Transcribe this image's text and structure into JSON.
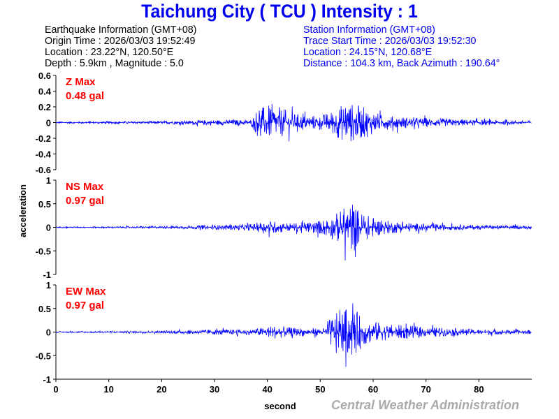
{
  "header": {
    "title": "Taichung City  ( TCU )  Intensity : 1"
  },
  "earthquake": {
    "heading": "Earthquake Information  (GMT+08)",
    "origin_time": "Origin Time : 2026/03/03 19:52:49",
    "location": "Location : 23.22°N, 120.50°E",
    "depth_magnitude": "Depth : 5.9km , Magnitude : 5.0"
  },
  "station": {
    "heading": "Station Information  (GMT+08)",
    "trace_start": "Trace Start Time : 2026/03/03 19:52:30",
    "location": "Location : 24.15°N, 120.68°E",
    "distance": "Distance : 104.3 km, Back Azimuth : 190.64°"
  },
  "footer": {
    "credit": "Central Weather Administration"
  },
  "chart_data": {
    "type": "line",
    "xlabel": "second",
    "ylabel": "acceleration",
    "xlim": [
      0,
      90
    ],
    "xticks": [
      "0",
      "10",
      "20",
      "30",
      "40",
      "50",
      "60",
      "70",
      "80"
    ],
    "line_color": "#0000ff",
    "panels": [
      {
        "name": "Z",
        "max_label": "Z Max",
        "max_value": "0.48 gal",
        "ylim": [
          -0.6,
          0.6
        ],
        "yticks": [
          "0.6",
          "0.4",
          "0.2",
          "0",
          "-0.2",
          "-0.4",
          "-0.6"
        ],
        "envelope": [
          [
            0,
            0.02
          ],
          [
            20,
            0.03
          ],
          [
            30,
            0.06
          ],
          [
            37,
            0.06
          ],
          [
            38,
            0.3
          ],
          [
            41,
            0.4
          ],
          [
            45,
            0.2
          ],
          [
            50,
            0.15
          ],
          [
            52,
            0.25
          ],
          [
            55,
            0.45
          ],
          [
            58,
            0.35
          ],
          [
            62,
            0.15
          ],
          [
            70,
            0.1
          ],
          [
            80,
            0.06
          ],
          [
            90,
            0.04
          ]
        ]
      },
      {
        "name": "NS",
        "max_label": "NS Max",
        "max_value": "0.97 gal",
        "ylim": [
          -1,
          1
        ],
        "yticks": [
          "1",
          "0.5",
          "0",
          "-0.5",
          "-1"
        ],
        "envelope": [
          [
            0,
            0.02
          ],
          [
            20,
            0.04
          ],
          [
            30,
            0.08
          ],
          [
            37,
            0.12
          ],
          [
            40,
            0.25
          ],
          [
            45,
            0.15
          ],
          [
            50,
            0.25
          ],
          [
            53,
            0.5
          ],
          [
            56,
            0.95
          ],
          [
            58,
            0.5
          ],
          [
            62,
            0.25
          ],
          [
            70,
            0.12
          ],
          [
            80,
            0.08
          ],
          [
            90,
            0.06
          ]
        ]
      },
      {
        "name": "EW",
        "max_label": "EW Max",
        "max_value": "0.97 gal",
        "ylim": [
          -1,
          1
        ],
        "yticks": [
          "1",
          "0.5",
          "0",
          "-0.5",
          "-1"
        ],
        "envelope": [
          [
            0,
            0.02
          ],
          [
            20,
            0.05
          ],
          [
            30,
            0.1
          ],
          [
            37,
            0.1
          ],
          [
            41,
            0.25
          ],
          [
            45,
            0.15
          ],
          [
            51,
            0.15
          ],
          [
            52,
            0.55
          ],
          [
            56,
            0.95
          ],
          [
            58,
            0.5
          ],
          [
            62,
            0.3
          ],
          [
            70,
            0.18
          ],
          [
            80,
            0.1
          ],
          [
            90,
            0.07
          ]
        ]
      }
    ]
  }
}
